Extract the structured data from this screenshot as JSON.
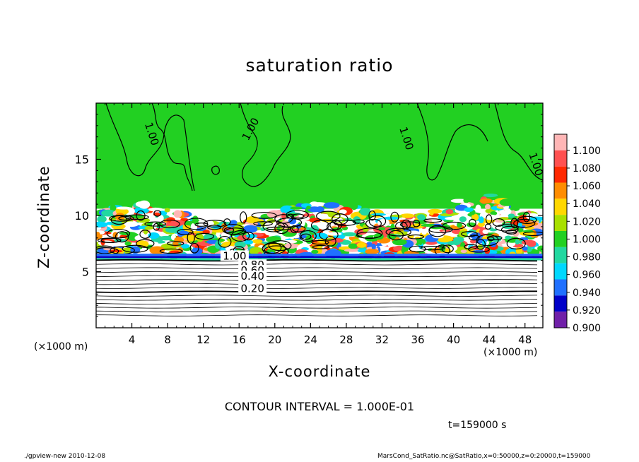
{
  "chart_data": {
    "type": "heatmap",
    "title": "saturation ratio",
    "xlabel": "X-coordinate",
    "ylabel": "Z-coordinate",
    "x_unit_label": "(×1000 m)",
    "x_ticks": [
      4,
      8,
      12,
      16,
      20,
      24,
      28,
      32,
      36,
      40,
      44,
      48
    ],
    "y_ticks": [
      5,
      10,
      15
    ],
    "xlim": [
      0,
      50
    ],
    "ylim": [
      0,
      20
    ],
    "colorbar": {
      "levels": [
        "1.100",
        "1.080",
        "1.060",
        "1.040",
        "1.020",
        "1.000",
        "0.980",
        "0.960",
        "0.940",
        "0.920",
        "0.900"
      ],
      "colors": [
        "#ffb6b6",
        "#ff5050",
        "#ff2800",
        "#ff8c00",
        "#ffd700",
        "#a8e000",
        "#22d022",
        "#22d8a0",
        "#00d8ff",
        "#2070ff",
        "#0000c8",
        "#7020a8"
      ]
    },
    "contour_labels": [
      {
        "text": "1.00",
        "x": 6,
        "z": 17.2
      },
      {
        "text": "1.00",
        "x": 17.5,
        "z": 17.6
      },
      {
        "text": "1.00",
        "x": 34.5,
        "z": 16.8
      },
      {
        "text": "1.00",
        "x": 49,
        "z": 14.5
      },
      {
        "text": "1.00",
        "x": 15.5,
        "z": 6.2
      },
      {
        "text": "0.80",
        "x": 17.5,
        "z": 5.4
      },
      {
        "text": "0.60",
        "x": 17.5,
        "z": 4.9
      },
      {
        "text": "0.40",
        "x": 17.5,
        "z": 4.4
      },
      {
        "text": "0.20",
        "x": 17.5,
        "z": 3.3
      }
    ],
    "contour_interval_text": "CONTOUR INTERVAL = 1.000E-01",
    "time_text": "t=159000 s"
  },
  "footer": {
    "left": "./gpview-new   2010-12-08",
    "right": "MarsCond_SatRatio.nc@SatRatio,x=0:50000,z=0:20000,t=159000"
  },
  "colors": {
    "background": "#ffffff",
    "supersaturated_region": "#22d022",
    "axis": "#000000"
  }
}
